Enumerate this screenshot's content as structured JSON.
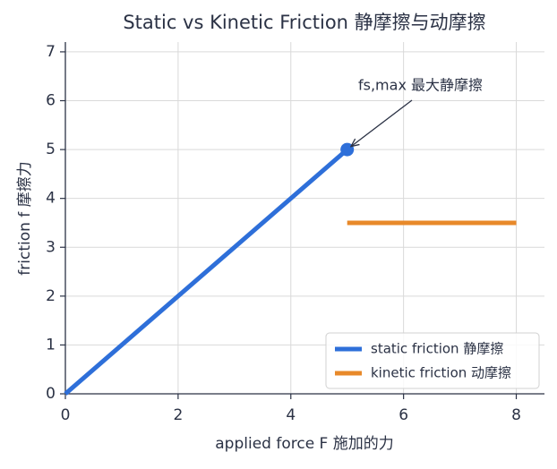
{
  "chart_data": {
    "type": "line",
    "title": "Static vs Kinetic Friction  静摩擦与动摩擦",
    "x_label": "applied force F  施加的力",
    "y_label": "friction f  摩擦力",
    "series": [
      {
        "name": "static friction 静摩擦",
        "color": "#2e6fd9",
        "x": [
          0,
          5
        ],
        "values": [
          0,
          5
        ]
      },
      {
        "name": "kinetic friction 动摩擦",
        "color": "#e8892a",
        "x": [
          5,
          8
        ],
        "values": [
          3.5,
          3.5
        ]
      }
    ],
    "annotation": "fs,max 最大静摩擦",
    "xlim": [
      0,
      8.5
    ],
    "xticks": [
      0,
      2,
      4,
      6,
      8
    ],
    "ylim": [
      0,
      7.2
    ],
    "yticks": [
      0,
      1,
      2,
      3,
      4,
      5,
      6,
      7
    ],
    "grid": true,
    "legend": "lower right"
  }
}
